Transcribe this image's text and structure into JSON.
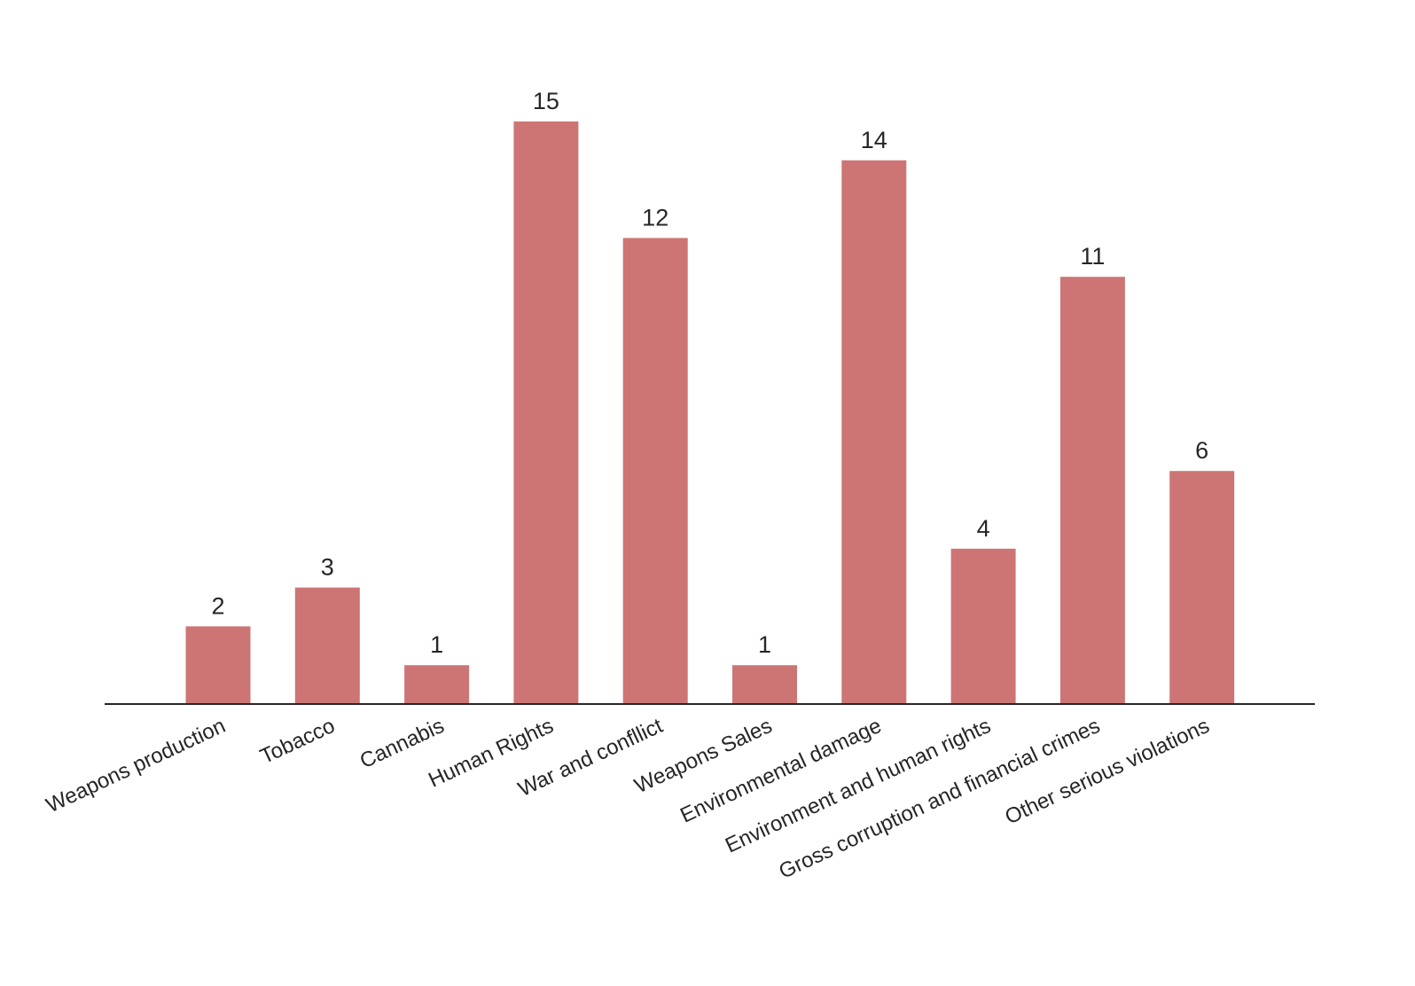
{
  "chart_data": {
    "type": "bar",
    "categories": [
      "Weapons production",
      "Tobacco",
      "Cannabis",
      "Human Rights",
      "War and confllict",
      "Weapons Sales",
      "Environmental damage",
      "Environment and human rights",
      "Gross corruption and financial crimes",
      "Other serious violations"
    ],
    "values": [
      2,
      3,
      1,
      15,
      12,
      1,
      14,
      4,
      11,
      6
    ],
    "title": "",
    "xlabel": "",
    "ylabel": "",
    "ylim": [
      0,
      15
    ],
    "grid": false,
    "legend": "none",
    "bar_color": "#cd7575",
    "axis_color": "#262626"
  }
}
